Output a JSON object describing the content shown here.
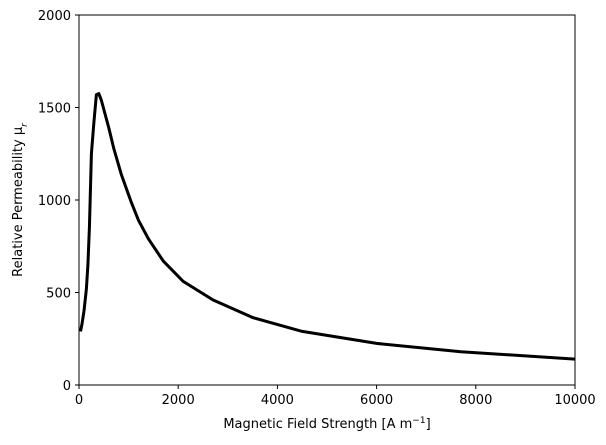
{
  "chart_data": {
    "type": "line",
    "title": "",
    "xlabel": "Magnetic Field Strength [A m",
    "xlabel_exponent": "−1",
    "xlabel_close": "]",
    "ylabel": "Relative Permeability μ",
    "ylabel_subscript": "r",
    "xlim": [
      0,
      10000
    ],
    "ylim": [
      0,
      2000
    ],
    "xticks": [
      0,
      2000,
      4000,
      6000,
      8000,
      10000
    ],
    "xtick_labels": [
      "0",
      "2000",
      "4000",
      "6000",
      "8000",
      "10000"
    ],
    "yticks": [
      0,
      500,
      1000,
      1500,
      2000
    ],
    "ytick_labels": [
      "0",
      "500",
      "1000",
      "1500",
      "2000"
    ],
    "grid": false,
    "series": [
      {
        "color": "#000000",
        "x": [
          30,
          60,
          100,
          150,
          180,
          210,
          250,
          300,
          350,
          400,
          450,
          500,
          600,
          700,
          850,
          1050,
          1200,
          1400,
          1700,
          2100,
          2700,
          3500,
          4500,
          6000,
          7700,
          10000
        ],
        "y": [
          290,
          330,
          400,
          520,
          650,
          850,
          1250,
          1420,
          1570,
          1575,
          1540,
          1490,
          1390,
          1280,
          1140,
          990,
          890,
          790,
          670,
          560,
          460,
          365,
          290,
          225,
          180,
          140
        ]
      }
    ]
  }
}
